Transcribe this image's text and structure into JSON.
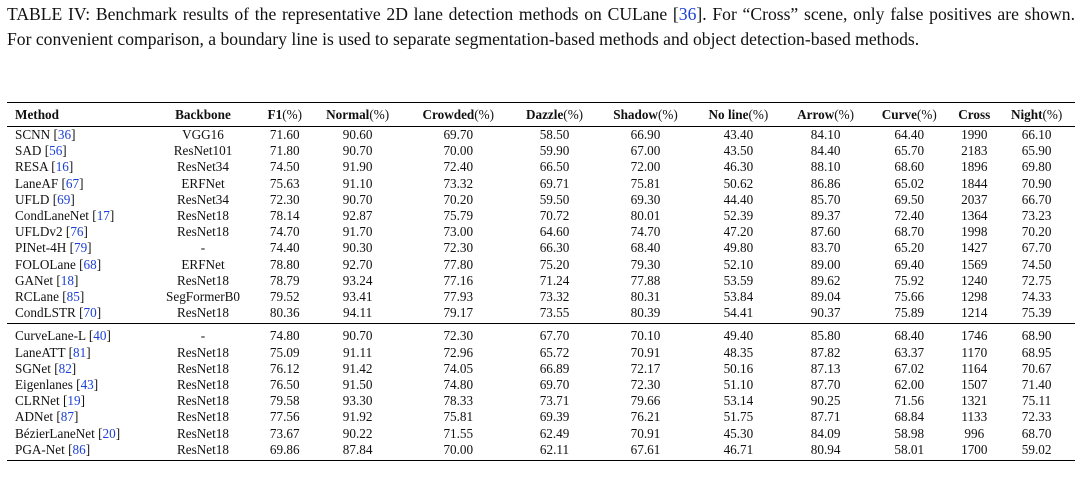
{
  "caption": {
    "prefix": "TABLE IV: Benchmark results of the representative 2D lane detection methods on CULane [",
    "cite": "36",
    "suffix": "]. For “Cross” scene, only false positives are shown. For convenient comparison, a boundary line is used to separate segmentation-based methods and object detection-based methods."
  },
  "columns": [
    {
      "name": "Method",
      "unit": ""
    },
    {
      "name": "Backbone",
      "unit": ""
    },
    {
      "name": "F1",
      "unit": "(%)"
    },
    {
      "name": "Normal",
      "unit": "(%)"
    },
    {
      "name": "Crowded",
      "unit": "(%)"
    },
    {
      "name": "Dazzle",
      "unit": "(%)"
    },
    {
      "name": "Shadow",
      "unit": "(%)"
    },
    {
      "name": "No line",
      "unit": "(%)"
    },
    {
      "name": "Arrow",
      "unit": "(%)"
    },
    {
      "name": "Curve",
      "unit": "(%)"
    },
    {
      "name": "Cross",
      "unit": ""
    },
    {
      "name": "Night",
      "unit": "(%)"
    }
  ],
  "groups": [
    [
      {
        "method": "SCNN",
        "cite": "36",
        "backbone": "VGG16",
        "values": [
          "71.60",
          "90.60",
          "69.70",
          "58.50",
          "66.90",
          "43.40",
          "84.10",
          "64.40",
          "1990",
          "66.10"
        ]
      },
      {
        "method": "SAD",
        "cite": "56",
        "backbone": "ResNet101",
        "values": [
          "71.80",
          "90.70",
          "70.00",
          "59.90",
          "67.00",
          "43.50",
          "84.40",
          "65.70",
          "2183",
          "65.90"
        ]
      },
      {
        "method": "RESA",
        "cite": "16",
        "backbone": "ResNet34",
        "values": [
          "74.50",
          "91.90",
          "72.40",
          "66.50",
          "72.00",
          "46.30",
          "88.10",
          "68.60",
          "1896",
          "69.80"
        ]
      },
      {
        "method": "LaneAF",
        "cite": "67",
        "backbone": "ERFNet",
        "values": [
          "75.63",
          "91.10",
          "73.32",
          "69.71",
          "75.81",
          "50.62",
          "86.86",
          "65.02",
          "1844",
          "70.90"
        ]
      },
      {
        "method": "UFLD",
        "cite": "69",
        "backbone": "ResNet34",
        "values": [
          "72.30",
          "90.70",
          "70.20",
          "59.50",
          "69.30",
          "44.40",
          "85.70",
          "69.50",
          "2037",
          "66.70"
        ]
      },
      {
        "method": "CondLaneNet",
        "cite": "17",
        "backbone": "ResNet18",
        "values": [
          "78.14",
          "92.87",
          "75.79",
          "70.72",
          "80.01",
          "52.39",
          "89.37",
          "72.40",
          "1364",
          "73.23"
        ]
      },
      {
        "method": "UFLDv2",
        "cite": "76",
        "backbone": "ResNet18",
        "values": [
          "74.70",
          "91.70",
          "73.00",
          "64.60",
          "74.70",
          "47.20",
          "87.60",
          "68.70",
          "1998",
          "70.20"
        ]
      },
      {
        "method": "PINet-4H",
        "cite": "79",
        "backbone": "-",
        "values": [
          "74.40",
          "90.30",
          "72.30",
          "66.30",
          "68.40",
          "49.80",
          "83.70",
          "65.20",
          "1427",
          "67.70"
        ]
      },
      {
        "method": "FOLOLane",
        "cite": "68",
        "backbone": "ERFNet",
        "values": [
          "78.80",
          "92.70",
          "77.80",
          "75.20",
          "79.30",
          "52.10",
          "89.00",
          "69.40",
          "1569",
          "74.50"
        ]
      },
      {
        "method": "GANet",
        "cite": "18",
        "backbone": "ResNet18",
        "values": [
          "78.79",
          "93.24",
          "77.16",
          "71.24",
          "77.88",
          "53.59",
          "89.62",
          "75.92",
          "1240",
          "72.75"
        ]
      },
      {
        "method": "RCLane",
        "cite": "85",
        "backbone": "SegFormerB0",
        "values": [
          "79.52",
          "93.41",
          "77.93",
          "73.32",
          "80.31",
          "53.84",
          "89.04",
          "75.66",
          "1298",
          "74.33"
        ]
      },
      {
        "method": "CondLSTR",
        "cite": "70",
        "backbone": "ResNet18",
        "values": [
          "80.36",
          "94.11",
          "79.17",
          "73.55",
          "80.39",
          "54.41",
          "90.37",
          "75.89",
          "1214",
          "75.39"
        ]
      }
    ],
    [
      {
        "method": "CurveLane-L",
        "cite": "40",
        "backbone": "-",
        "values": [
          "74.80",
          "90.70",
          "72.30",
          "67.70",
          "70.10",
          "49.40",
          "85.80",
          "68.40",
          "1746",
          "68.90"
        ]
      },
      {
        "method": "LaneATT",
        "cite": "81",
        "backbone": "ResNet18",
        "values": [
          "75.09",
          "91.11",
          "72.96",
          "65.72",
          "70.91",
          "48.35",
          "87.82",
          "63.37",
          "1170",
          "68.95"
        ]
      },
      {
        "method": "SGNet",
        "cite": "82",
        "backbone": "ResNet18",
        "values": [
          "76.12",
          "91.42",
          "74.05",
          "66.89",
          "72.17",
          "50.16",
          "87.13",
          "67.02",
          "1164",
          "70.67"
        ]
      },
      {
        "method": "Eigenlanes",
        "cite": "43",
        "backbone": "ResNet18",
        "values": [
          "76.50",
          "91.50",
          "74.80",
          "69.70",
          "72.30",
          "51.10",
          "87.70",
          "62.00",
          "1507",
          "71.40"
        ]
      },
      {
        "method": "CLRNet",
        "cite": "19",
        "backbone": "ResNet18",
        "values": [
          "79.58",
          "93.30",
          "78.33",
          "73.71",
          "79.66",
          "53.14",
          "90.25",
          "71.56",
          "1321",
          "75.11"
        ]
      },
      {
        "method": "ADNet",
        "cite": "87",
        "backbone": "ResNet18",
        "values": [
          "77.56",
          "91.92",
          "75.81",
          "69.39",
          "76.21",
          "51.75",
          "87.71",
          "68.84",
          "1133",
          "72.33"
        ]
      },
      {
        "method": "BézierLaneNet",
        "cite": "20",
        "backbone": "ResNet18",
        "values": [
          "73.67",
          "90.22",
          "71.55",
          "62.49",
          "70.91",
          "45.30",
          "84.09",
          "58.98",
          "996",
          "68.70"
        ]
      },
      {
        "method": "PGA-Net",
        "cite": "86",
        "backbone": "ResNet18",
        "values": [
          "69.86",
          "87.84",
          "70.00",
          "62.11",
          "67.61",
          "46.71",
          "80.94",
          "58.01",
          "1700",
          "59.02"
        ]
      }
    ]
  ]
}
